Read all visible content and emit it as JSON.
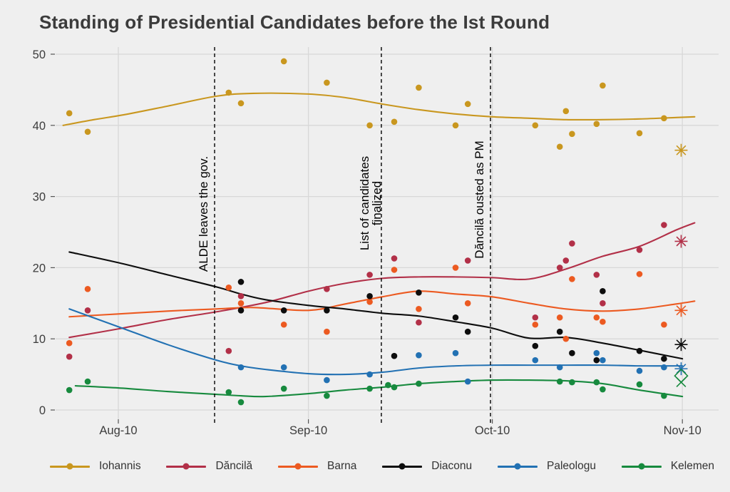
{
  "chart_data": {
    "type": "scatter",
    "title": "Standing of Presidential Candidates before the Ist Round",
    "grid": true,
    "legend_position": "bottom",
    "colors": {
      "background": "#EFEFEF",
      "gridline": "#D8D8D8",
      "axis_text": "#3C3C3C",
      "annotation": "#000000",
      "title": "#3B3B3B"
    },
    "x_axis": {
      "unit": "days since Aug 1, 2019",
      "ticks": [
        {
          "day": 9,
          "label": "Aug-10"
        },
        {
          "day": 40,
          "label": "Sep-10"
        },
        {
          "day": 70,
          "label": "Oct-10"
        },
        {
          "day": 101,
          "label": "Nov-10"
        }
      ],
      "domain_days": [
        -1,
        106
      ]
    },
    "y_axis": {
      "ticks": [
        0,
        10,
        20,
        30,
        40,
        50
      ],
      "range": [
        0,
        50
      ]
    },
    "events": [
      {
        "day": 24.7,
        "label_lines": [
          "ALDE leaves the gov."
        ],
        "label_center_y": 300
      },
      {
        "day": 51.9,
        "label_lines": [
          "List of candidates",
          "finalized"
        ],
        "label_center_y": 285
      },
      {
        "day": 69.7,
        "label_lines": [
          "Dăncilă ousted as PM"
        ],
        "label_center_y": 280
      }
    ],
    "final_marker_day": 100.8,
    "series": [
      {
        "name": "Iohannis",
        "color": "#C9971F",
        "points": [
          [
            1,
            41.7
          ],
          [
            4,
            39.1
          ],
          [
            27,
            44.6
          ],
          [
            29,
            43.1
          ],
          [
            36,
            49.0
          ],
          [
            43,
            46.0
          ],
          [
            50,
            40.0
          ],
          [
            54,
            40.5
          ],
          [
            58,
            45.3
          ],
          [
            64,
            40.0
          ],
          [
            66,
            43.0
          ],
          [
            77,
            40.0
          ],
          [
            81,
            37.0
          ],
          [
            82,
            42.0
          ],
          [
            83,
            38.8
          ],
          [
            87,
            40.2
          ],
          [
            88,
            45.6
          ],
          [
            94,
            38.9
          ],
          [
            98,
            41.0
          ]
        ],
        "smooth": [
          [
            0,
            40.0
          ],
          [
            5,
            40.8
          ],
          [
            10,
            41.5
          ],
          [
            17,
            42.7
          ],
          [
            25,
            44.1
          ],
          [
            31,
            44.5
          ],
          [
            40,
            44.4
          ],
          [
            46,
            43.9
          ],
          [
            52,
            43.0
          ],
          [
            58,
            42.2
          ],
          [
            64,
            41.6
          ],
          [
            70,
            41.2
          ],
          [
            76,
            41.0
          ],
          [
            82,
            40.8
          ],
          [
            88,
            40.8
          ],
          [
            94,
            40.9
          ],
          [
            100,
            41.1
          ],
          [
            103,
            41.2
          ]
        ],
        "final_markers": [
          {
            "value": 36.5,
            "shape": "asterisk8"
          }
        ]
      },
      {
        "name": "Dăncilă",
        "color": "#B23048",
        "points": [
          [
            1,
            7.5
          ],
          [
            4,
            14.0
          ],
          [
            27,
            8.3
          ],
          [
            29,
            16.0
          ],
          [
            43,
            17.0
          ],
          [
            50,
            19.0
          ],
          [
            54,
            21.3
          ],
          [
            58,
            12.3
          ],
          [
            66,
            21.0
          ],
          [
            77,
            13.0
          ],
          [
            81,
            20.0
          ],
          [
            82,
            21.0
          ],
          [
            83,
            23.4
          ],
          [
            87,
            19.0
          ],
          [
            88,
            15.0
          ],
          [
            94,
            22.5
          ],
          [
            98,
            26.0
          ]
        ],
        "smooth": [
          [
            1,
            10.2
          ],
          [
            9,
            11.4
          ],
          [
            17,
            12.7
          ],
          [
            25,
            13.8
          ],
          [
            33,
            15.1
          ],
          [
            40,
            16.7
          ],
          [
            46,
            17.8
          ],
          [
            52,
            18.5
          ],
          [
            58,
            18.7
          ],
          [
            64,
            18.7
          ],
          [
            70,
            18.6
          ],
          [
            76,
            18.4
          ],
          [
            82,
            19.8
          ],
          [
            88,
            21.6
          ],
          [
            94,
            23.0
          ],
          [
            100,
            25.3
          ],
          [
            103,
            26.3
          ]
        ],
        "final_markers": [
          {
            "value": 23.7,
            "shape": "asterisk8"
          }
        ]
      },
      {
        "name": "Barna",
        "color": "#EC5A21",
        "points": [
          [
            1,
            9.4
          ],
          [
            4,
            17.0
          ],
          [
            27,
            17.2
          ],
          [
            29,
            15.0
          ],
          [
            36,
            12.0
          ],
          [
            43,
            11.0
          ],
          [
            50,
            15.2
          ],
          [
            54,
            19.7
          ],
          [
            58,
            14.2
          ],
          [
            64,
            20.0
          ],
          [
            66,
            15.0
          ],
          [
            77,
            12.0
          ],
          [
            81,
            13.0
          ],
          [
            82,
            10.0
          ],
          [
            83,
            18.4
          ],
          [
            87,
            13.0
          ],
          [
            88,
            12.4
          ],
          [
            94,
            19.1
          ],
          [
            98,
            12.0
          ]
        ],
        "smooth": [
          [
            1,
            13.1
          ],
          [
            9,
            13.5
          ],
          [
            17,
            13.9
          ],
          [
            25,
            14.2
          ],
          [
            31,
            14.4
          ],
          [
            40,
            14.0
          ],
          [
            46,
            14.9
          ],
          [
            52,
            15.9
          ],
          [
            58,
            16.7
          ],
          [
            64,
            16.3
          ],
          [
            70,
            15.9
          ],
          [
            76,
            15.0
          ],
          [
            82,
            14.2
          ],
          [
            88,
            13.9
          ],
          [
            94,
            14.2
          ],
          [
            100,
            14.9
          ],
          [
            103,
            15.3
          ]
        ],
        "final_markers": [
          {
            "value": 14.0,
            "shape": "asterisk8"
          }
        ]
      },
      {
        "name": "Diaconu",
        "color": "#0D0D0D",
        "points": [
          [
            29,
            18.0
          ],
          [
            29,
            14.0
          ],
          [
            36,
            14.0
          ],
          [
            43,
            14.0
          ],
          [
            50,
            16.0
          ],
          [
            54,
            7.6
          ],
          [
            58,
            16.5
          ],
          [
            64,
            13.0
          ],
          [
            66,
            11.0
          ],
          [
            77,
            9.0
          ],
          [
            81,
            11.0
          ],
          [
            83,
            8.0
          ],
          [
            87,
            7.0
          ],
          [
            88,
            16.7
          ],
          [
            94,
            8.3
          ],
          [
            98,
            7.2
          ]
        ],
        "smooth": [
          [
            1,
            22.2
          ],
          [
            9,
            20.7
          ],
          [
            17,
            19.0
          ],
          [
            25,
            17.3
          ],
          [
            29,
            16.3
          ],
          [
            33,
            15.5
          ],
          [
            40,
            14.7
          ],
          [
            46,
            14.2
          ],
          [
            52,
            13.6
          ],
          [
            58,
            13.2
          ],
          [
            64,
            12.4
          ],
          [
            70,
            11.5
          ],
          [
            76,
            10.1
          ],
          [
            82,
            10.2
          ],
          [
            88,
            9.4
          ],
          [
            94,
            8.4
          ],
          [
            101,
            7.2
          ]
        ],
        "final_markers": [
          {
            "value": 9.2,
            "shape": "asterisk8"
          }
        ]
      },
      {
        "name": "Paleologu",
        "color": "#2271B3",
        "points": [
          [
            29,
            6.0
          ],
          [
            36,
            6.0
          ],
          [
            43,
            4.2
          ],
          [
            50,
            5.0
          ],
          [
            58,
            7.7
          ],
          [
            64,
            8.0
          ],
          [
            66,
            4.0
          ],
          [
            77,
            7.0
          ],
          [
            81,
            6.0
          ],
          [
            87,
            8.0
          ],
          [
            88,
            7.0
          ],
          [
            94,
            5.5
          ],
          [
            98,
            6.0
          ]
        ],
        "smooth": [
          [
            1,
            14.2
          ],
          [
            9,
            11.7
          ],
          [
            17,
            9.2
          ],
          [
            25,
            7.0
          ],
          [
            29,
            6.2
          ],
          [
            33,
            5.7
          ],
          [
            40,
            5.1
          ],
          [
            46,
            5.0
          ],
          [
            52,
            5.3
          ],
          [
            58,
            5.9
          ],
          [
            64,
            6.2
          ],
          [
            70,
            6.3
          ],
          [
            76,
            6.3
          ],
          [
            82,
            6.3
          ],
          [
            88,
            6.3
          ],
          [
            94,
            6.2
          ],
          [
            101,
            6.2
          ]
        ],
        "final_markers": [
          {
            "value": 5.8,
            "shape": "asterisk8"
          }
        ]
      },
      {
        "name": "Kelemen",
        "color": "#178A3E",
        "points": [
          [
            1,
            2.8
          ],
          [
            4,
            4.0
          ],
          [
            27,
            2.5
          ],
          [
            29,
            1.1
          ],
          [
            36,
            3.0
          ],
          [
            43,
            2.0
          ],
          [
            50,
            3.0
          ],
          [
            53,
            3.5
          ],
          [
            54,
            3.2
          ],
          [
            58,
            3.7
          ],
          [
            81,
            4.0
          ],
          [
            83,
            3.9
          ],
          [
            87,
            3.9
          ],
          [
            88,
            2.9
          ],
          [
            94,
            3.6
          ],
          [
            98,
            2.0
          ]
        ],
        "smooth": [
          [
            2,
            3.4
          ],
          [
            9,
            3.1
          ],
          [
            17,
            2.6
          ],
          [
            25,
            2.2
          ],
          [
            29,
            2.0
          ],
          [
            33,
            1.9
          ],
          [
            40,
            2.3
          ],
          [
            46,
            2.8
          ],
          [
            52,
            3.2
          ],
          [
            58,
            3.7
          ],
          [
            64,
            4.0
          ],
          [
            70,
            4.2
          ],
          [
            76,
            4.2
          ],
          [
            82,
            4.1
          ],
          [
            88,
            3.7
          ],
          [
            94,
            2.8
          ],
          [
            101,
            1.9
          ]
        ],
        "final_markers": [
          {
            "value": 4.8,
            "shape": "diamond"
          },
          {
            "value": 3.9,
            "shape": "x"
          }
        ]
      }
    ]
  }
}
